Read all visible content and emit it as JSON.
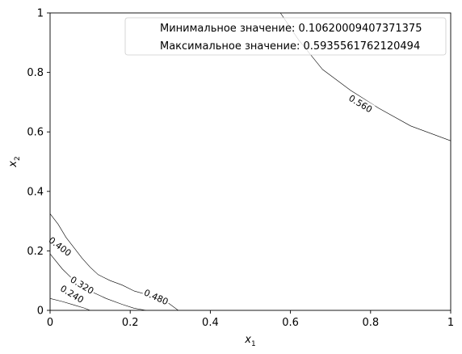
{
  "chart_data": {
    "type": "contour",
    "title": "",
    "xlabel": {
      "main": "x",
      "sub": "1"
    },
    "ylabel": {
      "main": "x",
      "sub": "2"
    },
    "xlim": [
      0,
      1
    ],
    "ylim": [
      0,
      1
    ],
    "xticks": [
      "0",
      "0.2",
      "0.4",
      "0.6",
      "0.8",
      "1"
    ],
    "yticks": [
      "0",
      "0.2",
      "0.4",
      "0.6",
      "0.8",
      "1"
    ],
    "grid": false,
    "legend_position": "top-right",
    "legend": [
      "Минимальное значение: 0.10620009407371375",
      "Максимальное значение: 0.5935561762120494"
    ],
    "contours": [
      {
        "label": "0.240",
        "points": [
          [
            0.0,
            0.04
          ],
          [
            0.03,
            0.03
          ],
          [
            0.06,
            0.018
          ],
          [
            0.085,
            0.008
          ],
          [
            0.1,
            0.0
          ]
        ]
      },
      {
        "label": "0.320",
        "points": [
          [
            0.0,
            0.19
          ],
          [
            0.03,
            0.14
          ],
          [
            0.06,
            0.1
          ],
          [
            0.1,
            0.065
          ],
          [
            0.14,
            0.04
          ],
          [
            0.18,
            0.02
          ],
          [
            0.21,
            0.007
          ],
          [
            0.24,
            0.0
          ]
        ]
      },
      {
        "label": "0.400",
        "points": [
          [
            0.0,
            0.325
          ],
          [
            0.02,
            0.29
          ],
          [
            0.04,
            0.245
          ],
          [
            0.06,
            0.21
          ],
          [
            0.08,
            0.175
          ],
          [
            0.1,
            0.145
          ],
          [
            0.12,
            0.12
          ],
          [
            0.15,
            0.1
          ],
          [
            0.18,
            0.085
          ],
          [
            0.21,
            0.065
          ],
          [
            0.25,
            0.05
          ],
          [
            0.29,
            0.03
          ],
          [
            0.32,
            0.0
          ]
        ]
      },
      {
        "label": "0.560",
        "points": [
          [
            0.575,
            1.0
          ],
          [
            0.62,
            0.91
          ],
          [
            0.68,
            0.81
          ],
          [
            0.75,
            0.74
          ],
          [
            0.82,
            0.68
          ],
          [
            0.9,
            0.62
          ],
          [
            1.0,
            0.57
          ]
        ]
      }
    ],
    "contour_labels": [
      {
        "text": "0.560",
        "x": 0.775,
        "y": 0.695,
        "angle": 31
      },
      {
        "text": "0.480",
        "x": 0.265,
        "y": 0.045,
        "angle": 24
      },
      {
        "text": "0.400",
        "x": 0.025,
        "y": 0.215,
        "angle": 37
      },
      {
        "text": "0.320",
        "x": 0.08,
        "y": 0.085,
        "angle": 31
      },
      {
        "text": "0.240",
        "x": 0.055,
        "y": 0.055,
        "angle": 31
      }
    ]
  }
}
